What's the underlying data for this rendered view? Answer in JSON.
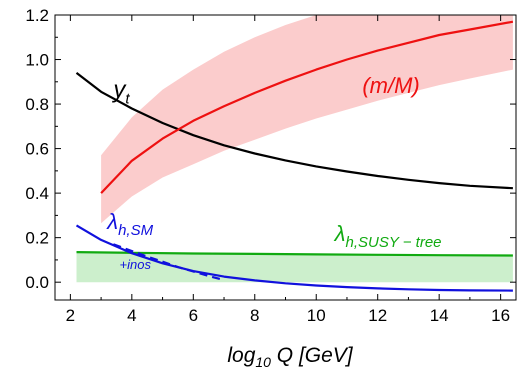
{
  "chart_data": {
    "type": "line",
    "xlabel": "log",
    "xlabel_sub": "10",
    "xlabel_rest": " Q [GeV]",
    "xlim": [
      1.5,
      16.5
    ],
    "ylim": [
      -0.08,
      1.2
    ],
    "xticks": [
      2,
      4,
      6,
      8,
      10,
      12,
      14,
      16
    ],
    "yticks": [
      0.0,
      0.2,
      0.4,
      0.6,
      0.8,
      1.0,
      1.2
    ],
    "ytick_labels": [
      "0.0",
      "0.2",
      "0.4",
      "0.6",
      "0.8",
      "1.0",
      "1.2"
    ],
    "grid": false,
    "series": [
      {
        "name": "y",
        "name_sub": "t",
        "color": "#000000",
        "style": "solid",
        "x": [
          2.2,
          3,
          4,
          5,
          6,
          7,
          8,
          9,
          10,
          11,
          12,
          13,
          14,
          15,
          16.4
        ],
        "y": [
          0.94,
          0.855,
          0.78,
          0.715,
          0.66,
          0.615,
          0.578,
          0.547,
          0.52,
          0.497,
          0.477,
          0.46,
          0.445,
          0.433,
          0.422
        ]
      },
      {
        "name": "(m/M)",
        "color": "#ee1111",
        "style": "solid",
        "x": [
          3,
          4,
          5,
          6,
          7,
          8,
          9,
          10,
          11,
          12,
          13,
          14,
          15,
          16.4
        ],
        "y": [
          0.4,
          0.545,
          0.645,
          0.725,
          0.79,
          0.85,
          0.905,
          0.955,
          1.0,
          1.04,
          1.075,
          1.11,
          1.135,
          1.17
        ],
        "band_upper": [
          0.57,
          0.74,
          0.865,
          0.955,
          1.035,
          1.1,
          1.155,
          1.2,
          1.2,
          1.2,
          1.2,
          1.2,
          1.2,
          1.2
        ],
        "band_lower": [
          0.265,
          0.385,
          0.47,
          0.53,
          0.59,
          0.64,
          0.69,
          0.735,
          0.775,
          0.815,
          0.85,
          0.885,
          0.915,
          0.955
        ],
        "band_color": "#fbcccc"
      },
      {
        "name": "λ",
        "name_sub": "h,SUSY − tree",
        "color": "#11aa11",
        "style": "solid",
        "x": [
          2.2,
          4,
          6,
          8,
          10,
          12,
          14,
          16.4
        ],
        "y": [
          0.135,
          0.132,
          0.129,
          0.127,
          0.125,
          0.123,
          0.121,
          0.12
        ],
        "band_upper": [
          0.135,
          0.132,
          0.129,
          0.127,
          0.125,
          0.123,
          0.121,
          0.12
        ],
        "band_lower": [
          0.0,
          0.0,
          0.0,
          0.0,
          0.0,
          0.0,
          0.0,
          0.0
        ],
        "band_color": "#ccefcc"
      },
      {
        "name": "λ",
        "name_sub": "h,SM",
        "color": "#1111dd",
        "style": "solid",
        "x": [
          2.2,
          3,
          4,
          5,
          6,
          7,
          8,
          9,
          10,
          11,
          12,
          13,
          14,
          15,
          16.4
        ],
        "y": [
          0.255,
          0.19,
          0.13,
          0.085,
          0.05,
          0.025,
          0.008,
          -0.005,
          -0.015,
          -0.022,
          -0.028,
          -0.032,
          -0.035,
          -0.037,
          -0.038
        ]
      },
      {
        "name": "+inos",
        "color": "#1111dd",
        "style": "dashed",
        "x": [
          3.4,
          4,
          4.5,
          5,
          5.5,
          6,
          6.5,
          7
        ],
        "y": [
          0.17,
          0.14,
          0.115,
          0.092,
          0.068,
          0.048,
          0.028,
          0.01
        ]
      }
    ],
    "annotations": [
      {
        "text": "y",
        "sub": "t",
        "x": 3.4,
        "y": 0.83,
        "color": "#000000"
      },
      {
        "text": "(m/M)",
        "x": 11.5,
        "y": 0.85,
        "color": "#ee1111"
      },
      {
        "text": "λ",
        "sub": "h,SUSY − tree",
        "x": 10.6,
        "y": 0.185,
        "color": "#11aa11"
      },
      {
        "text": "λ",
        "sub": "h,SM",
        "x": 3.2,
        "y": 0.24,
        "color": "#1111dd"
      },
      {
        "text": "+inos",
        "x": 3.6,
        "y": 0.06,
        "color": "#1111dd"
      }
    ]
  }
}
